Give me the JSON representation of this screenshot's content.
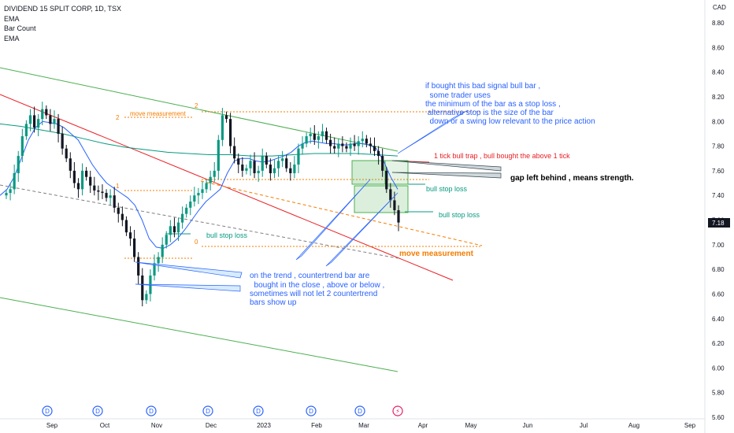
{
  "legend": {
    "symbol": "DIVIDEND 15 SPLIT CORP, 1D, TSX",
    "ind1": "EMA",
    "ind2": "Bar Count",
    "ind3": "EMA"
  },
  "colors": {
    "up": "#089981",
    "down": "#131722",
    "ema_fast": "#2962ff",
    "ema_slow": "#089981",
    "channel_green": "#4caf50",
    "trend_red": "#e91e23",
    "measure_orange": "#f57c00",
    "callout_blue": "#2962ff"
  },
  "chart_data": {
    "type": "candlestick",
    "currency": "CAD",
    "last_price": "7.18",
    "ylim": [
      5.6,
      8.9
    ],
    "y_ticks": [
      "8.80",
      "8.60",
      "8.40",
      "8.20",
      "8.00",
      "7.80",
      "7.60",
      "7.40",
      "7.20",
      "7.00",
      "6.80",
      "6.60",
      "6.40",
      "6.20",
      "6.00",
      "5.80",
      "5.60"
    ],
    "x_ticks": [
      "Sep",
      "Oct",
      "Nov",
      "Dec",
      "2023",
      "Feb",
      "Mar",
      "Apr",
      "May",
      "Jun",
      "Jul",
      "Aug",
      "Sep"
    ],
    "dividend_marker": "D",
    "earnings_marker": "⚡",
    "closes": [
      7.42,
      7.45,
      7.58,
      7.72,
      7.88,
      7.98,
      8.05,
      7.95,
      8.02,
      8.1,
      8.05,
      7.98,
      8.02,
      7.9,
      7.78,
      7.7,
      7.6,
      7.5,
      7.45,
      7.6,
      7.55,
      7.48,
      7.44,
      7.43,
      7.42,
      7.38,
      7.4,
      7.3,
      7.25,
      7.2,
      7.1,
      7.05,
      6.9,
      6.75,
      6.55,
      6.6,
      6.75,
      6.85,
      6.9,
      7.0,
      7.08,
      7.15,
      7.1,
      7.18,
      7.25,
      7.3,
      7.35,
      7.4,
      7.42,
      7.45,
      7.5,
      7.55,
      7.6,
      7.85,
      8.05,
      8.02,
      7.8,
      7.7,
      7.65,
      7.6,
      7.62,
      7.68,
      7.58,
      7.6,
      7.72,
      7.65,
      7.58,
      7.62,
      7.68,
      7.7,
      7.62,
      7.58,
      7.65,
      7.78,
      7.82,
      7.88,
      7.9,
      7.85,
      7.88,
      7.92,
      7.85,
      7.8,
      7.78,
      7.82,
      7.8,
      7.78,
      7.82,
      7.8,
      7.84,
      7.86,
      7.82,
      7.8,
      7.76,
      7.72,
      7.6,
      7.45,
      7.36,
      7.28,
      7.18
    ],
    "ema_fast": [
      7.4,
      7.45,
      7.55,
      7.7,
      7.85,
      7.95,
      8.0,
      7.99,
      7.98,
      7.95,
      7.9,
      7.85,
      7.75,
      7.65,
      7.57,
      7.5,
      7.46,
      7.42,
      7.38,
      7.32,
      7.2,
      7.05,
      6.98,
      6.97,
      7.0,
      7.05,
      7.12,
      7.2,
      7.28,
      7.35,
      7.4,
      7.45,
      7.58,
      7.68,
      7.7,
      7.7,
      7.68,
      7.67,
      7.68,
      7.7,
      7.72,
      7.75,
      7.8,
      7.83,
      7.84,
      7.83,
      7.82,
      7.82,
      7.81,
      7.81,
      7.82,
      7.82,
      7.81,
      7.78,
      7.68,
      7.55,
      7.45
    ],
    "ema_slow": [
      7.98,
      7.96,
      7.93,
      7.9,
      7.86,
      7.82,
      7.79,
      7.77,
      7.75,
      7.74,
      7.73,
      7.73,
      7.72,
      7.72,
      7.73,
      7.74,
      7.74,
      7.74,
      7.73,
      7.72
    ]
  },
  "annotations": {
    "callout_top": [
      "if bought this bad signal bull bar ,",
      "  some trader uses",
      "the minimum of the bar as a stop loss ,",
      " alternative stop is the size of the bar",
      "  down or a swing low relevant to the price action"
    ],
    "bull_trap": "1 tick bull trap , bull bought the above 1 tick",
    "gap": "gap left behind , means strength.",
    "bull_stop_loss_1": "bull stop loss",
    "bull_stop_loss_2": "bull stop loss",
    "bull_stop_loss_3": "bull stop loss",
    "move_measurement_small": "move measurement",
    "move_measurement_big": "move measurement",
    "fib_2a": "2",
    "fib_2b": "2",
    "fib_1": "1",
    "fib_0": "0",
    "callout_bottom": [
      "on the trend , countertrend bar are",
      "  bought in the close , above or below ,",
      "sometimes will not let 2 countertrend",
      "bars show up"
    ]
  }
}
